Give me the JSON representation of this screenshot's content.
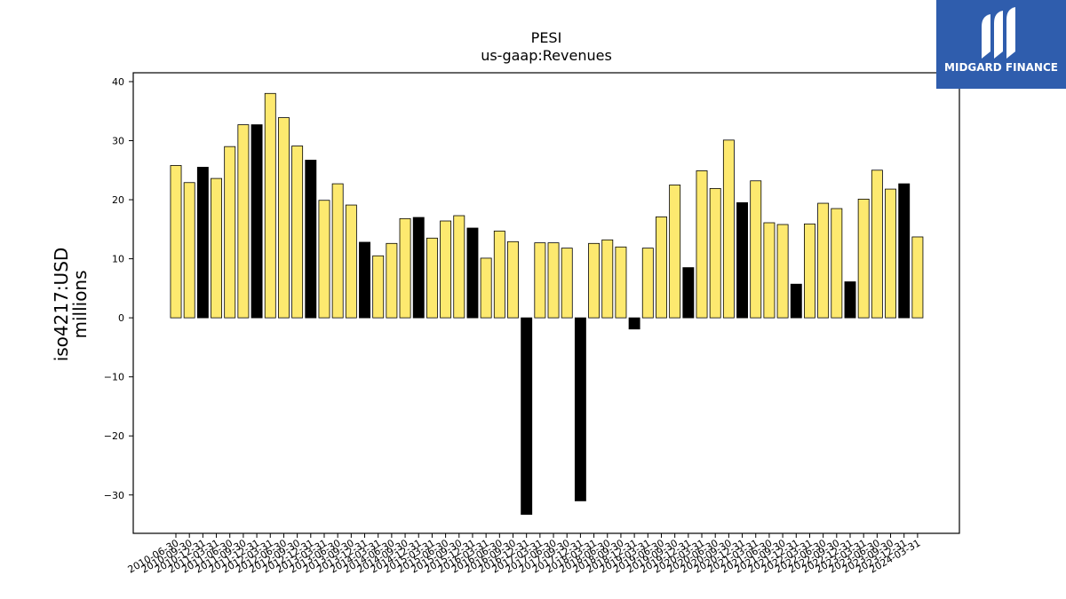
{
  "brand": {
    "name": "MIDGARD FINANCE",
    "bg_color": "#2f5dad"
  },
  "chart_data": {
    "type": "bar",
    "title": "PESI",
    "subtitle": "us-gaap:Revenues",
    "ylabel_line1": "iso4217:USD",
    "ylabel_line2": "millions",
    "ylim": [
      -36.5,
      41.5
    ],
    "yticks": [
      -30,
      -20,
      -10,
      0,
      10,
      20,
      30,
      40
    ],
    "colors": {
      "quarter": "#fde96f",
      "annual": "#000000"
    },
    "x_tick_labels": [
      "2010-06-30",
      "2010-09-30",
      "2010-12-31",
      "2011-03-31",
      "2011-06-30",
      "2011-09-30",
      "2011-12-31",
      "2012-03-31",
      "2012-06-30",
      "2012-09-30",
      "2012-12-31",
      "2013-03-31",
      "2013-06-30",
      "2013-09-30",
      "2013-12-31",
      "2014-03-31",
      "2014-06-30",
      "2014-09-30",
      "2014-12-31",
      "2015-03-31",
      "2015-06-30",
      "2015-09-30",
      "2015-12-31",
      "2016-03-31",
      "2016-06-30",
      "2016-09-30",
      "2016-12-31",
      "2017-03-31",
      "2017-06-30",
      "2017-09-30",
      "2017-12-31",
      "2018-03-31",
      "2018-06-30",
      "2018-09-30",
      "2018-12-31",
      "2019-03-31",
      "2019-06-30",
      "2019-09-30",
      "2019-12-31",
      "2020-03-31",
      "2020-06-30",
      "2020-09-30",
      "2020-12-31",
      "2021-03-31",
      "2021-06-30",
      "2021-09-30",
      "2021-12-31",
      "2022-03-31",
      "2022-06-30",
      "2022-09-30",
      "2022-12-31",
      "2023-03-31",
      "2023-06-30",
      "2023-09-30",
      "2023-12-31",
      "2024-03-31"
    ],
    "values": [
      25.8,
      22.9,
      25.5,
      23.6,
      29.0,
      32.7,
      32.7,
      38.0,
      33.9,
      29.1,
      26.7,
      19.9,
      22.7,
      19.1,
      12.8,
      10.5,
      12.6,
      16.8,
      17.0,
      13.5,
      16.4,
      17.3,
      15.2,
      10.1,
      14.7,
      12.9,
      -33.3,
      12.7,
      12.7,
      11.8,
      -31.0,
      12.6,
      13.2,
      12.0,
      -1.9,
      11.8,
      17.1,
      22.5,
      8.5,
      24.9,
      21.9,
      30.1,
      19.5,
      23.2,
      16.1,
      15.8,
      5.7,
      15.9,
      19.4,
      18.5,
      6.1,
      20.1,
      25.0,
      21.8,
      22.7,
      13.7
    ],
    "annual_flags": [
      0,
      0,
      1,
      0,
      0,
      0,
      1,
      0,
      0,
      0,
      1,
      0,
      0,
      0,
      1,
      0,
      0,
      0,
      1,
      0,
      0,
      0,
      1,
      0,
      0,
      0,
      1,
      0,
      0,
      0,
      1,
      0,
      0,
      0,
      1,
      0,
      0,
      0,
      1,
      0,
      0,
      0,
      1,
      0,
      0,
      0,
      1,
      0,
      0,
      0,
      1,
      0,
      0,
      0,
      1,
      0
    ]
  }
}
